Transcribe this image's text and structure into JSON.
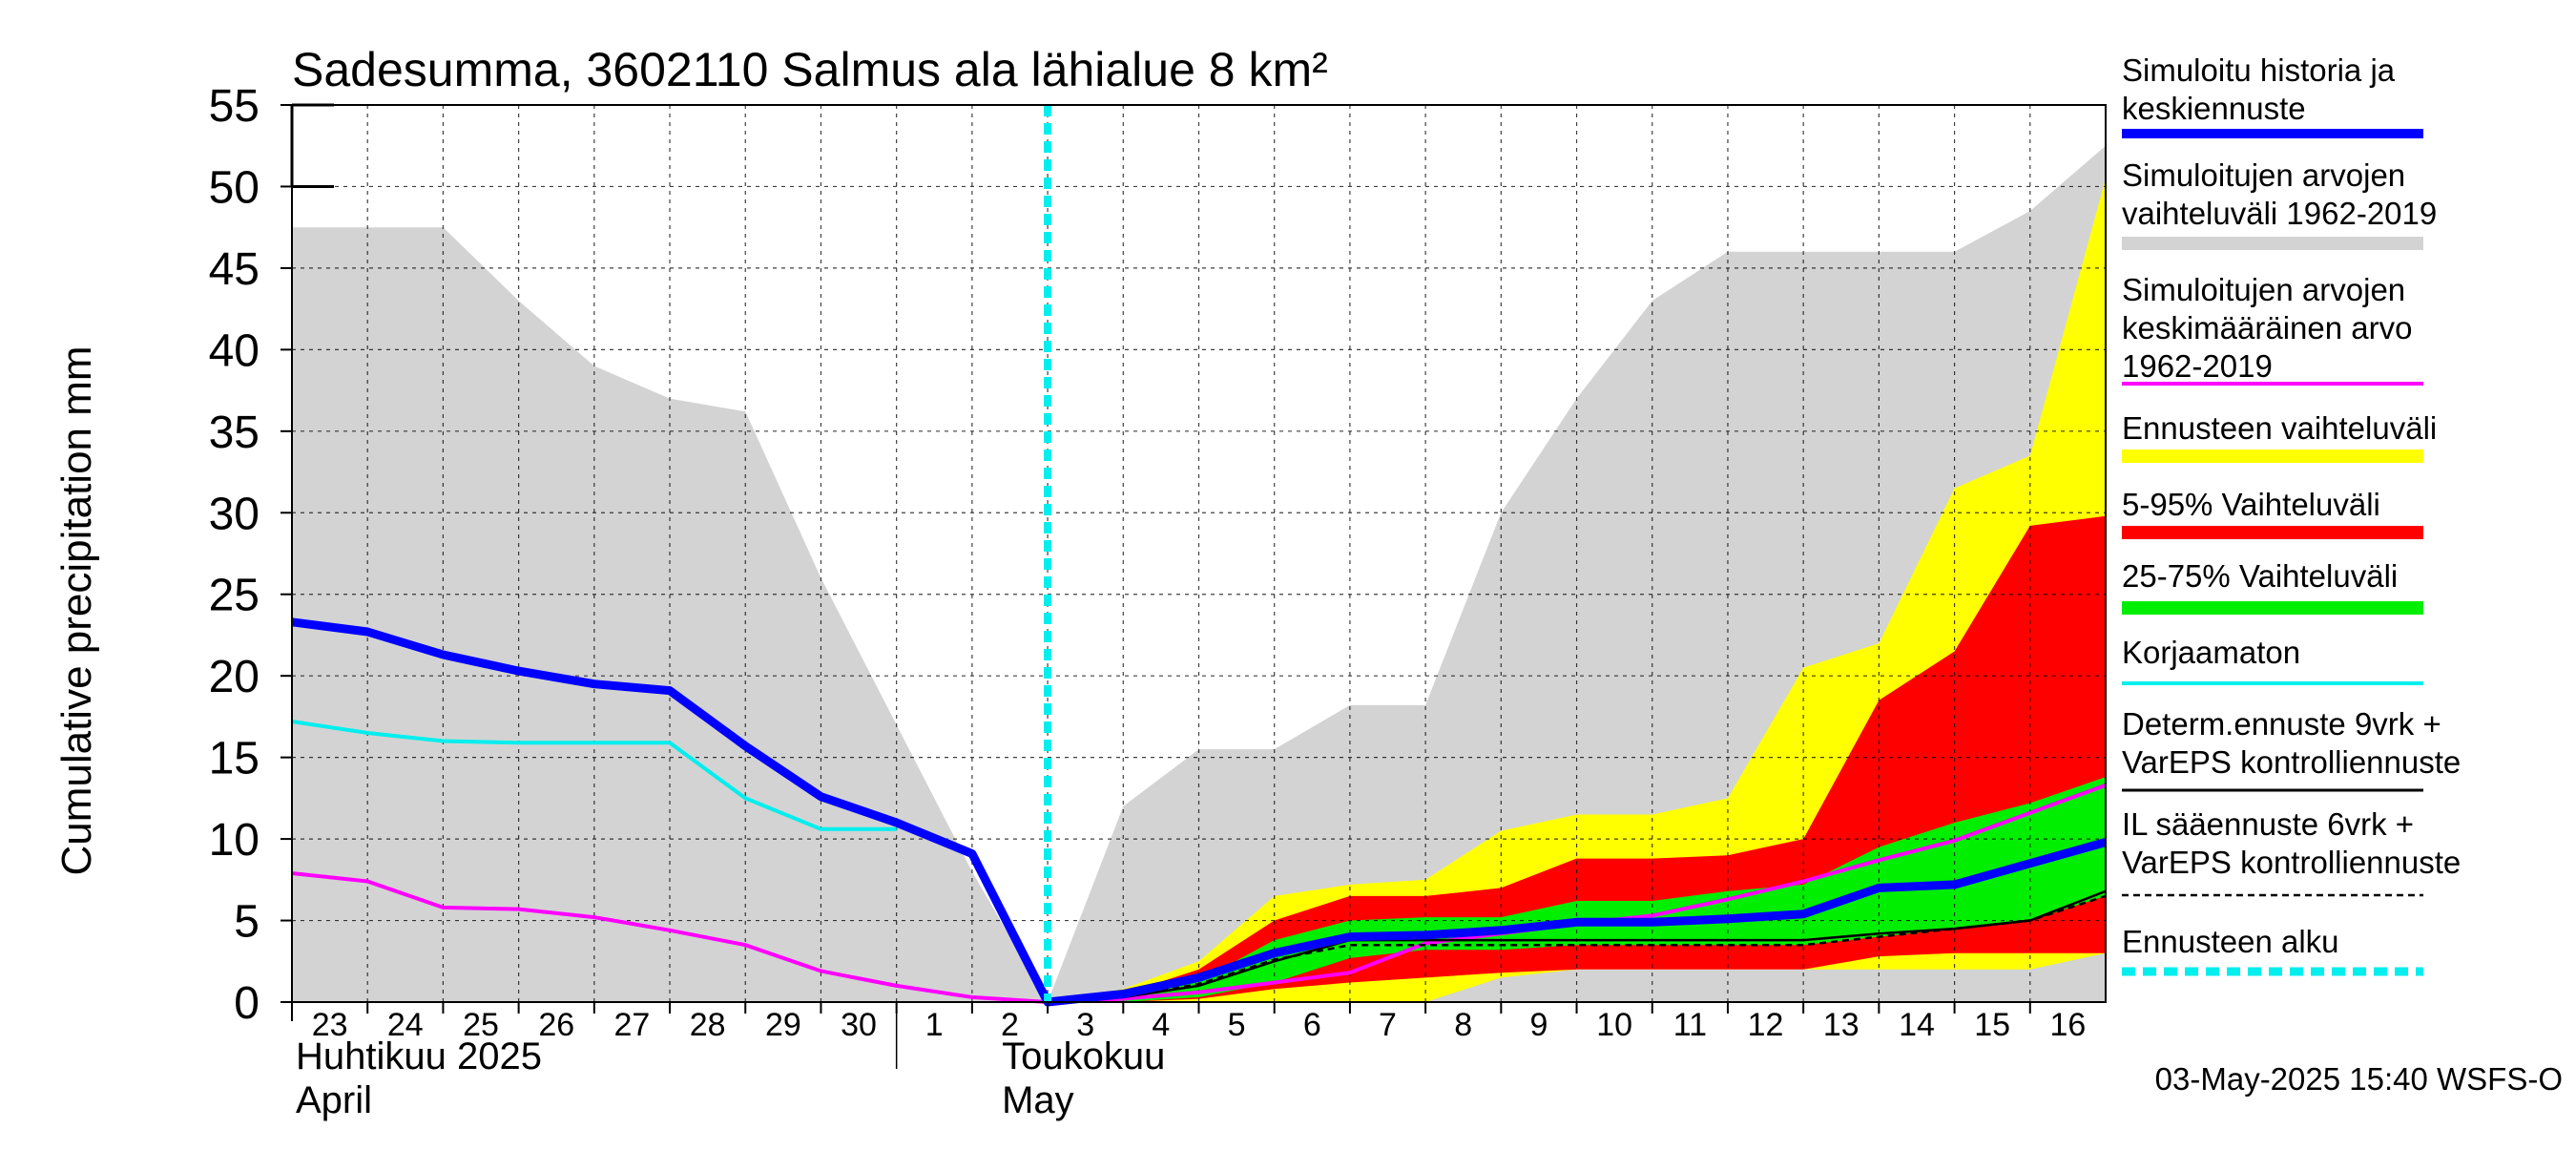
{
  "chart_data": {
    "type": "area",
    "title": "Sadesumma, 3602110 Salmus ala lähialue 8 km²",
    "ylabel": "Cumulative precipitation   mm",
    "ylim": [
      0,
      55
    ],
    "yticks": [
      0,
      5,
      10,
      15,
      20,
      25,
      30,
      35,
      40,
      45,
      50,
      55
    ],
    "x_tick_labels": [
      "23",
      "24",
      "25",
      "26",
      "27",
      "28",
      "29",
      "30",
      "1",
      "2",
      "3",
      "4",
      "5",
      "6",
      "7",
      "8",
      "9",
      "10",
      "11",
      "12",
      "13",
      "14",
      "15",
      "16"
    ],
    "month_labels": [
      {
        "fi": "Huhtikuu  2025",
        "en": "April"
      },
      {
        "fi": "Toukokuu",
        "en": "May"
      }
    ],
    "forecast_start_day": 10,
    "grid": true,
    "timestamp": "03-May-2025 15:40 WSFS-O",
    "legend_position": "right",
    "legend": [
      {
        "label": "Simuloitu historia ja keskiennuste",
        "lines": [
          "Simuloitu historia ja",
          "keskiennuste"
        ],
        "color": "#0000ff",
        "style": "line-thick"
      },
      {
        "label": "Simuloitujen arvojen vaihteluväli 1962-2019",
        "lines": [
          "Simuloitujen arvojen",
          "vaihteluväli 1962-2019"
        ],
        "color": "#d3d3d3",
        "style": "band"
      },
      {
        "label": "Simuloitujen arvojen keskimääräinen arvo 1962-2019",
        "lines": [
          "Simuloitujen arvojen",
          "keskimääräinen arvo",
          "   1962-2019"
        ],
        "color": "#ff00ff",
        "style": "line"
      },
      {
        "label": "Ennusteen vaihteluväli",
        "lines": [
          "Ennusteen vaihteluväli"
        ],
        "color": "#ffff00",
        "style": "band"
      },
      {
        "label": "5-95% Vaihteluväli",
        "lines": [
          "5-95% Vaihteluväli"
        ],
        "color": "#ff0000",
        "style": "band"
      },
      {
        "label": "25-75% Vaihteluväli",
        "lines": [
          "25-75% Vaihteluväli"
        ],
        "color": "#00ee00",
        "style": "band"
      },
      {
        "label": "Korjaamaton",
        "lines": [
          "Korjaamaton"
        ],
        "color": "#00eeee",
        "style": "line"
      },
      {
        "label": "Determ.ennuste 9vrk + VarEPS kontrolliennuste",
        "lines": [
          "Determ.ennuste 9vrk +",
          "VarEPS kontrolliennuste"
        ],
        "color": "#000000",
        "style": "line"
      },
      {
        "label": "IL sääennuste 6vrk + VarEPS kontrolliennuste",
        "lines": [
          "IL sääennuste 6vrk  +",
          "  VarEPS kontrolliennuste"
        ],
        "color": "#000000",
        "style": "dashed"
      },
      {
        "label": "Ennusteen alku",
        "lines": [
          "Ennusteen alku"
        ],
        "color": "#00eeee",
        "style": "dotted-thick"
      }
    ],
    "series": {
      "history_range": {
        "x": [
          0,
          1,
          2,
          3,
          4,
          5,
          6,
          7,
          8,
          9,
          10,
          11,
          12,
          13,
          14,
          15,
          16,
          17,
          18,
          19,
          20,
          21,
          22,
          23,
          24
        ],
        "upper": [
          47.5,
          47.5,
          47.5,
          43,
          39,
          37,
          36.2,
          26,
          17,
          8,
          0,
          12,
          15.5,
          15.5,
          18.2,
          18.2,
          30,
          37,
          43,
          46,
          46,
          46,
          46,
          48.5,
          52.5
        ],
        "lower": [
          0,
          0,
          0,
          0,
          0,
          0,
          0,
          0,
          0,
          0,
          0,
          0,
          0,
          0,
          0,
          0,
          0,
          0,
          0,
          0,
          0,
          0,
          0,
          0,
          0
        ]
      },
      "ennusteen_vaihteluvali": {
        "x": [
          10,
          11,
          12,
          13,
          14,
          15,
          16,
          17,
          18,
          19,
          20,
          21,
          22,
          23,
          24
        ],
        "upper": [
          0,
          0.8,
          2.5,
          6.5,
          7.2,
          7.5,
          10.5,
          11.5,
          11.5,
          12.5,
          20.5,
          22,
          31.5,
          33.5,
          50.5
        ],
        "lower": [
          0,
          0,
          0,
          0,
          0,
          0,
          1.5,
          2,
          2,
          2,
          2,
          2,
          2,
          2,
          3
        ]
      },
      "p5_95": {
        "x": [
          10,
          11,
          12,
          13,
          14,
          15,
          16,
          17,
          18,
          19,
          20,
          21,
          22,
          23,
          24
        ],
        "upper": [
          0,
          0.5,
          2,
          5,
          6.5,
          6.5,
          7,
          8.8,
          8.8,
          9,
          10,
          18.5,
          21.5,
          29.2,
          29.8
        ],
        "lower": [
          0,
          0,
          0.2,
          0.8,
          1.2,
          1.5,
          1.8,
          2,
          2,
          2,
          2,
          2.8,
          3,
          3,
          3
        ]
      },
      "p25_75": {
        "x": [
          10,
          11,
          12,
          13,
          14,
          15,
          16,
          17,
          18,
          19,
          20,
          21,
          22,
          23,
          24
        ],
        "upper": [
          0,
          0.3,
          1.3,
          3.8,
          5,
          5.2,
          5.2,
          6.2,
          6.2,
          6.8,
          7.2,
          9.5,
          11,
          12.2,
          13.8
        ],
        "lower": [
          0,
          0,
          0.3,
          1.2,
          2.7,
          3.2,
          3.2,
          3.5,
          3.5,
          3.5,
          3.5,
          4,
          4.5,
          5,
          6.5
        ]
      },
      "simuloitu_historia_ja_keskiennuste": {
        "x": [
          0,
          1,
          2,
          3,
          4,
          5,
          6,
          7,
          8,
          9,
          10,
          11,
          12,
          13,
          14,
          15,
          16,
          17,
          18,
          19,
          20,
          21,
          22,
          23,
          24
        ],
        "y": [
          23.3,
          22.7,
          21.3,
          20.3,
          19.5,
          19.1,
          15.7,
          12.6,
          11,
          9.1,
          0,
          0.5,
          1.5,
          3,
          4,
          4.1,
          4.4,
          4.9,
          4.9,
          5.1,
          5.4,
          7,
          7.2,
          8.5,
          9.8
        ]
      },
      "korjaamaton": {
        "x": [
          0,
          1,
          2,
          3,
          4,
          5,
          6,
          7,
          8
        ],
        "y": [
          17.2,
          16.5,
          16,
          15.9,
          15.9,
          15.9,
          12.5,
          10.6,
          10.6
        ]
      },
      "keskimaarainen_arvo": {
        "x": [
          0,
          1,
          2,
          3,
          4,
          5,
          6,
          7,
          8,
          9,
          10,
          11,
          12,
          13,
          14,
          15,
          16,
          17,
          18,
          19,
          20,
          21,
          22,
          23,
          24
        ],
        "y": [
          7.9,
          7.4,
          5.8,
          5.7,
          5.2,
          4.4,
          3.5,
          1.9,
          1,
          0.3,
          0,
          0.2,
          0.6,
          1.2,
          1.8,
          3.6,
          4.2,
          4.8,
          5.3,
          6.3,
          7.4,
          8.7,
          9.9,
          11.6,
          13.3
        ]
      },
      "determ_ennuste": {
        "x": [
          10,
          11,
          12,
          13,
          14,
          15,
          16,
          17,
          18,
          19,
          20,
          21,
          22,
          23,
          24
        ],
        "y": [
          0,
          0.3,
          1,
          2.5,
          3.8,
          3.8,
          3.8,
          3.8,
          3.8,
          3.8,
          3.8,
          4.2,
          4.5,
          5,
          6.8
        ]
      },
      "il_saaennuste": {
        "x": [
          10,
          11,
          12,
          13,
          14,
          15,
          16,
          17,
          18,
          19,
          20,
          21,
          22,
          23,
          24
        ],
        "y": [
          0,
          0.3,
          1.1,
          2.6,
          3.5,
          3.5,
          3.5,
          3.5,
          3.5,
          3.5,
          3.5,
          4,
          4.5,
          5,
          6.5
        ]
      }
    }
  }
}
